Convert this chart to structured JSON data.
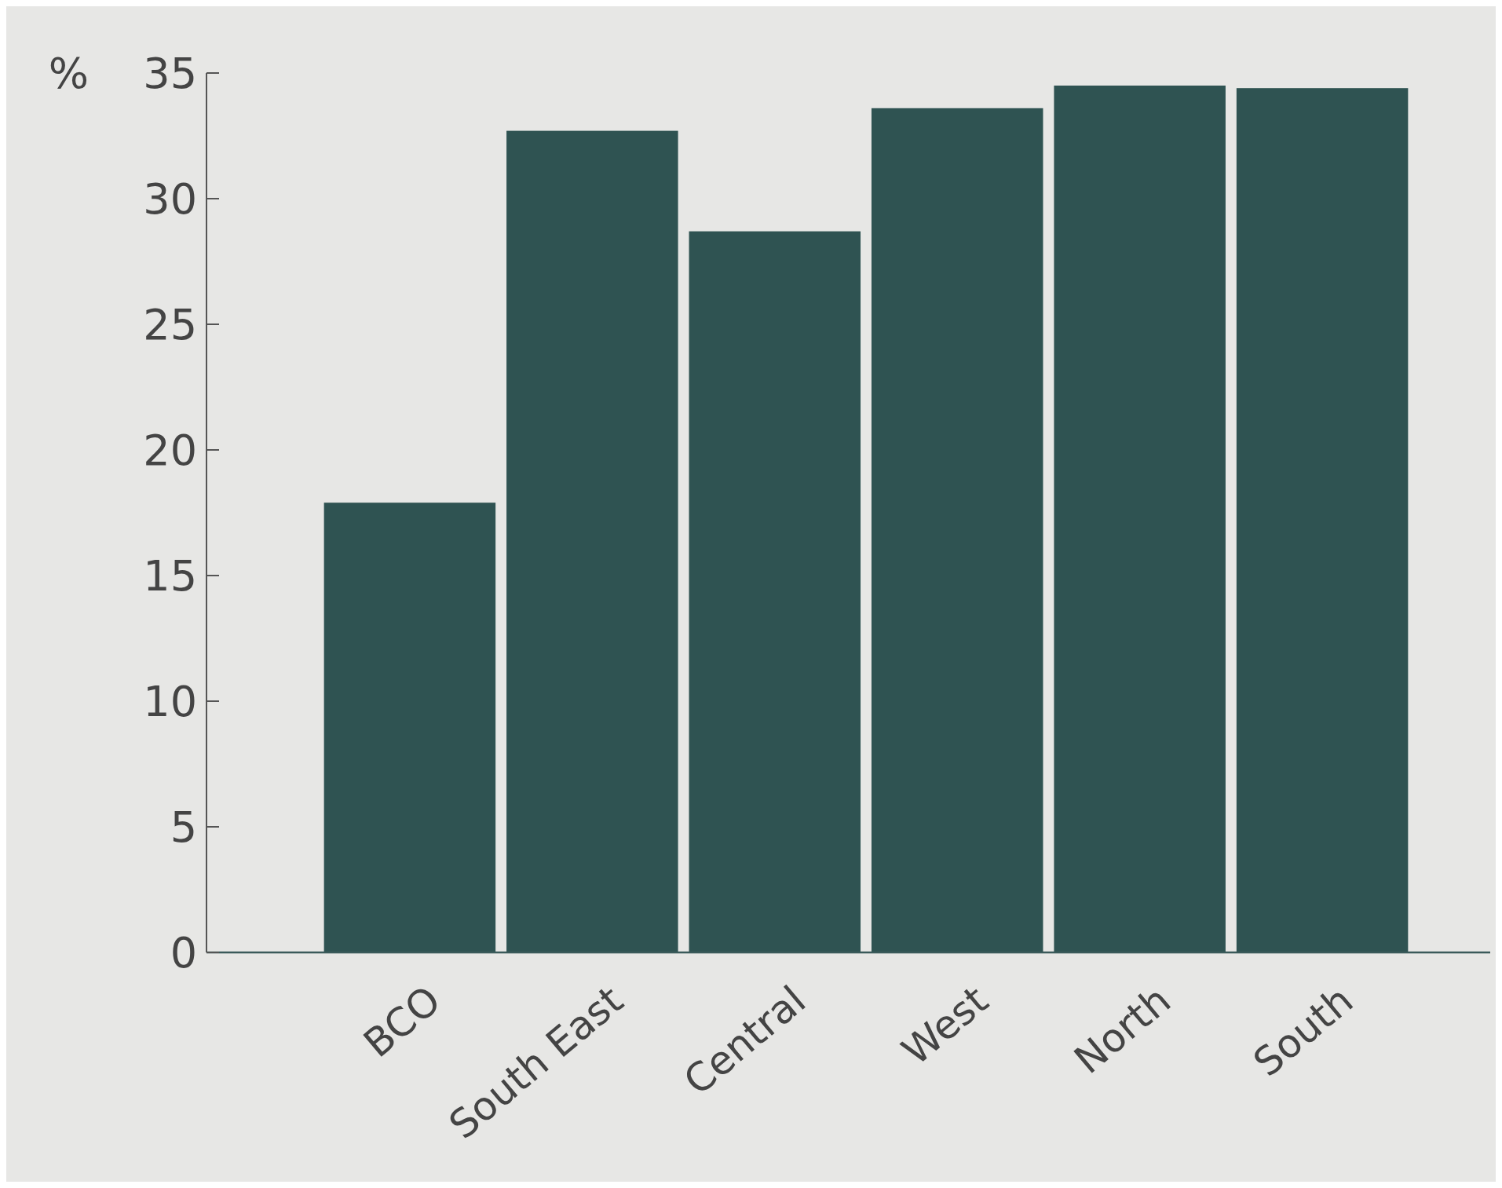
{
  "chart_data": {
    "type": "bar",
    "ylabel": "%",
    "categories": [
      "BCO",
      "South East",
      "Central",
      "West",
      "North",
      "South"
    ],
    "values": [
      17.9,
      32.7,
      28.7,
      33.6,
      34.5,
      34.4
    ],
    "color": "#2f5352",
    "ylim": [
      0,
      35
    ],
    "yticks": [
      0,
      5,
      10,
      15,
      20,
      25,
      30,
      35
    ],
    "grid": false
  }
}
